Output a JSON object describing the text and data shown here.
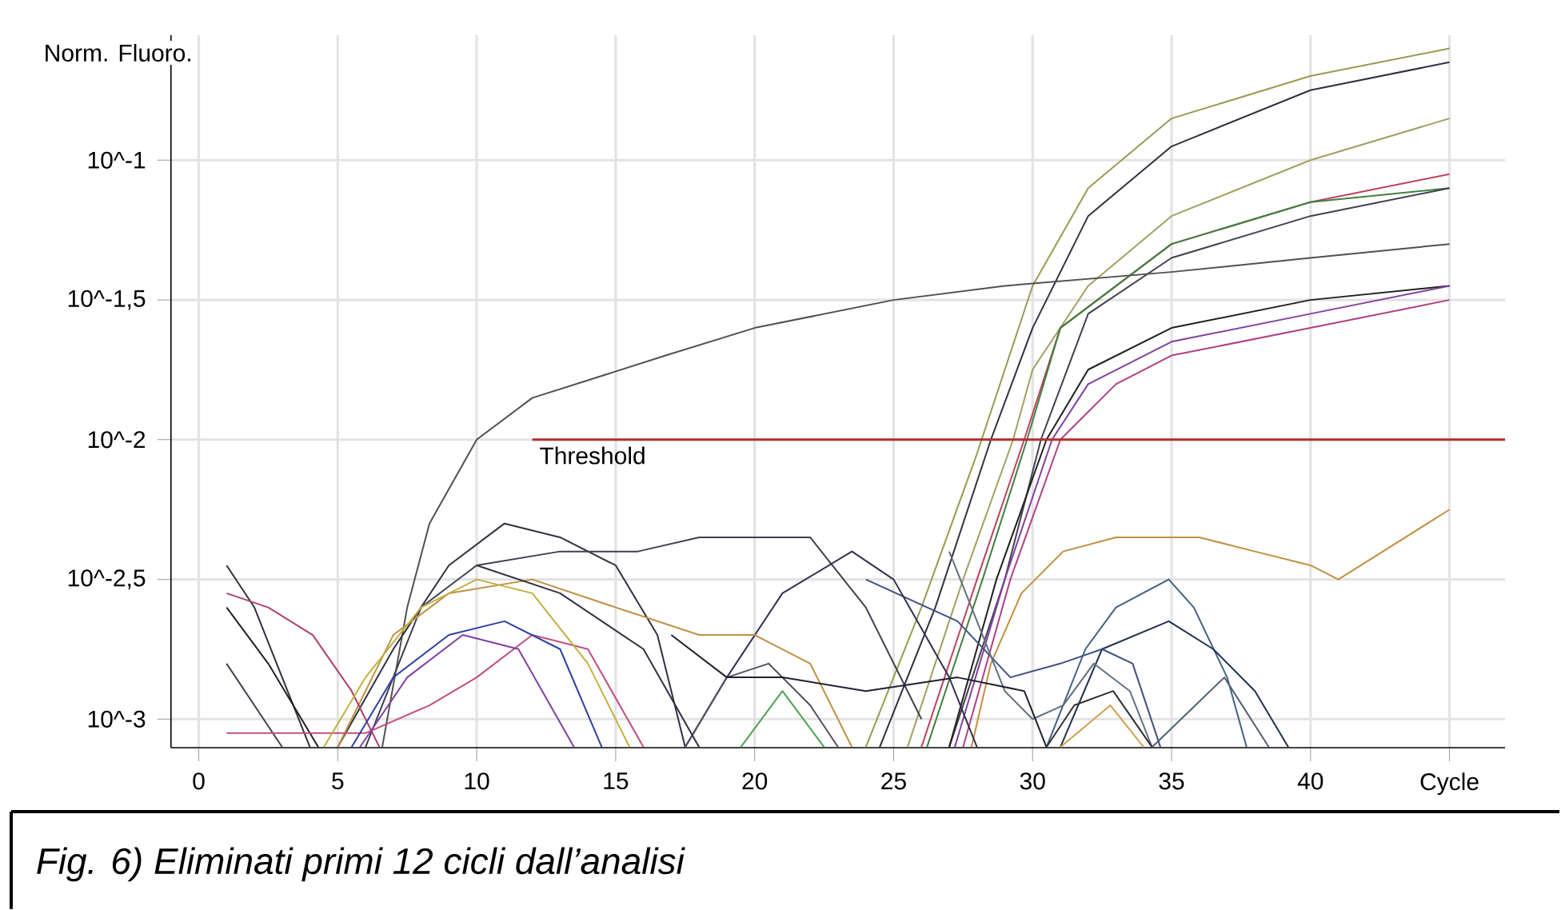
{
  "chart_data": {
    "type": "line",
    "ylabel": "Norm. Fluoro.",
    "annotations": [
      "Fig. 6) Eliminati primi 12 cicli dall’analisi"
    ],
    "xlim": [
      -1,
      47
    ],
    "ylim": [
      0.00079,
      0.28
    ],
    "log": true,
    "grid": true,
    "marker": "none",
    "xticks": [
      0,
      5,
      10,
      15,
      20,
      25,
      30,
      35,
      40,
      {
        "value": 45,
        "label": "Cycle"
      }
    ],
    "yticks": [
      {
        "value": 0.1,
        "label": "10^-1"
      },
      {
        "value": 0.0316,
        "label": "10^-1,5"
      },
      {
        "value": 0.01,
        "label": "10^-2"
      },
      {
        "value": 0.00316,
        "label": "10^-2,5"
      },
      {
        "value": 0.001,
        "label": "10^-3"
      }
    ],
    "series": [
      {
        "color": "#9a9a50",
        "x": [
          24,
          26,
          28,
          30,
          32,
          35,
          40,
          45
        ],
        "values": [
          0.000794,
          0.00251,
          0.00891,
          0.0355,
          0.0794,
          0.141,
          0.2,
          0.251
        ]
      },
      {
        "color": "#303040",
        "x": [
          24.5,
          26.5,
          28.5,
          30,
          32,
          35,
          40,
          45
        ],
        "values": [
          0.000794,
          0.00251,
          0.01,
          0.0251,
          0.0631,
          0.112,
          0.178,
          0.224
        ]
      },
      {
        "color": "#a0a060",
        "x": [
          25.5,
          27.5,
          29.3,
          30,
          32,
          35,
          40,
          45
        ],
        "values": [
          0.000794,
          0.00316,
          0.01,
          0.0178,
          0.0355,
          0.0631,
          0.1,
          0.141
        ]
      },
      {
        "color": "#c04060",
        "x": [
          26,
          28,
          29.7,
          31,
          35,
          40,
          45
        ],
        "values": [
          0.000794,
          0.00316,
          0.01,
          0.0251,
          0.0501,
          0.0708,
          0.0891
        ]
      },
      {
        "color": "#408040",
        "x": [
          26.2,
          28.2,
          29.8,
          31,
          35,
          40,
          45
        ],
        "values": [
          0.000794,
          0.00316,
          0.01,
          0.0251,
          0.0501,
          0.0708,
          0.0794
        ]
      },
      {
        "color": "#404050",
        "x": [
          27,
          29,
          30.3,
          32,
          35,
          40,
          45
        ],
        "values": [
          0.000794,
          0.00316,
          0.01,
          0.0282,
          0.0447,
          0.0631,
          0.0794
        ]
      },
      {
        "color": "#505050",
        "x": [
          6.6,
          7.5,
          8.3,
          10,
          12,
          16.8,
          20,
          25,
          29,
          35,
          40,
          45
        ],
        "values": [
          0.000794,
          0.00251,
          0.00501,
          0.01,
          0.0141,
          0.02,
          0.0251,
          0.0316,
          0.0355,
          0.0398,
          0.0447,
          0.0501
        ]
      },
      {
        "color": "#202020",
        "x": [
          27,
          28.7,
          30.5,
          32,
          35,
          40,
          45
        ],
        "values": [
          0.000794,
          0.00316,
          0.01,
          0.0178,
          0.0251,
          0.0316,
          0.0355
        ]
      },
      {
        "color": "#8040a0",
        "x": [
          27.2,
          29,
          30.7,
          32,
          35,
          40,
          45
        ],
        "values": [
          0.000794,
          0.00316,
          0.01,
          0.0158,
          0.0224,
          0.0282,
          0.0355
        ]
      },
      {
        "color": "#b04080",
        "x": [
          27.5,
          29.2,
          31,
          33,
          35,
          40,
          45
        ],
        "values": [
          0.000794,
          0.00316,
          0.01,
          0.0158,
          0.02,
          0.0251,
          0.0316
        ]
      },
      {
        "color": "#c09040",
        "x": [
          27.8,
          28.5,
          29.6,
          31.1,
          33,
          36,
          38,
          40,
          41,
          45
        ],
        "values": [
          0.000794,
          0.00158,
          0.00282,
          0.00398,
          0.00447,
          0.00447,
          0.00398,
          0.00355,
          0.00316,
          0.00562
        ]
      },
      {
        "color": "#406080",
        "x": [
          30.5,
          31.9,
          33,
          34.9,
          35.8,
          37,
          37.7
        ],
        "values": [
          0.000794,
          0.00178,
          0.00251,
          0.00316,
          0.00251,
          0.00141,
          0.000794
        ]
      },
      {
        "color": "#203050",
        "x": [
          31,
          32.5,
          34.9,
          36.5,
          38,
          39.2
        ],
        "values": [
          0.000794,
          0.00178,
          0.00224,
          0.00178,
          0.00126,
          0.000794
        ]
      },
      {
        "color": "#405080",
        "x": [
          24,
          27.3,
          29.2,
          31,
          32.5,
          33.6,
          34.6
        ],
        "values": [
          0.00316,
          0.00224,
          0.00141,
          0.00158,
          0.00178,
          0.00158,
          0.000794
        ]
      },
      {
        "color": "#607080",
        "x": [
          27,
          29,
          30,
          31.1,
          32.2,
          33.5,
          34.3
        ],
        "values": [
          0.00398,
          0.00126,
          0.001,
          0.00112,
          0.00158,
          0.00126,
          0.000794
        ]
      },
      {
        "color": "#303030",
        "x": [
          30.5,
          31.5,
          32.9,
          34.3
        ],
        "values": [
          0.000794,
          0.00112,
          0.00126,
          0.000794
        ]
      },
      {
        "color": "#506070",
        "x": [
          34.3,
          36.9,
          38.5
        ],
        "values": [
          0.000794,
          0.00141,
          0.000794
        ]
      },
      {
        "color": "#d0a050",
        "x": [
          31,
          32.8,
          34
        ],
        "values": [
          0.000794,
          0.00112,
          0.000794
        ]
      },
      {
        "color": "#303040",
        "x": [
          5,
          7,
          9,
          11,
          13,
          15,
          16.5,
          17.5
        ],
        "values": [
          0.000794,
          0.00178,
          0.00355,
          0.00501,
          0.00447,
          0.00355,
          0.002,
          0.000794
        ]
      },
      {
        "color": "#404050",
        "x": [
          6,
          8,
          10,
          13,
          15.8,
          18,
          20,
          22,
          24,
          26
        ],
        "values": [
          0.000794,
          0.00251,
          0.00355,
          0.00398,
          0.00398,
          0.00447,
          0.00447,
          0.00447,
          0.00251,
          0.001
        ]
      },
      {
        "color": "#303050",
        "x": [
          17.5,
          19,
          21,
          23.5,
          25,
          27,
          28
        ],
        "values": [
          0.000794,
          0.00141,
          0.00282,
          0.00398,
          0.00316,
          0.00141,
          0.000794
        ]
      },
      {
        "color": "#c09040",
        "x": [
          5,
          7,
          9,
          12,
          15,
          18,
          20,
          22,
          23.5
        ],
        "values": [
          0.000794,
          0.002,
          0.00282,
          0.00316,
          0.00251,
          0.002,
          0.002,
          0.00158,
          0.000794
        ]
      },
      {
        "color": "#303040",
        "x": [
          1,
          2,
          3,
          4
        ],
        "values": [
          0.00355,
          0.00251,
          0.00141,
          0.000794
        ]
      },
      {
        "color": "#b04070",
        "x": [
          1,
          2.5,
          4.1,
          5.5,
          6.5
        ],
        "values": [
          0.00282,
          0.00251,
          0.002,
          0.00126,
          0.000794
        ]
      },
      {
        "color": "#202020",
        "x": [
          1,
          2.5,
          4.3
        ],
        "values": [
          0.00251,
          0.00158,
          0.000794
        ]
      },
      {
        "color": "#404050",
        "x": [
          1,
          2,
          3
        ],
        "values": [
          0.00158,
          0.00112,
          0.000794
        ]
      },
      {
        "color": "#c05080",
        "x": [
          1,
          4,
          6,
          8.3,
          10,
          12,
          14,
          16
        ],
        "values": [
          0.000891,
          0.000891,
          0.000891,
          0.00112,
          0.00141,
          0.002,
          0.00178,
          0.000794
        ]
      },
      {
        "color": "#c0b040",
        "x": [
          4.5,
          6,
          8,
          10,
          12,
          14,
          15.5
        ],
        "values": [
          0.000794,
          0.00141,
          0.00251,
          0.00316,
          0.00282,
          0.00158,
          0.000794
        ]
      },
      {
        "color": "#3040a0",
        "x": [
          5.5,
          7,
          9,
          11,
          13,
          14.5
        ],
        "values": [
          0.000794,
          0.00141,
          0.002,
          0.00224,
          0.00178,
          0.000794
        ]
      },
      {
        "color": "#8040a0",
        "x": [
          5.8,
          7.5,
          9.5,
          11.5,
          13.5
        ],
        "values": [
          0.000794,
          0.00141,
          0.002,
          0.00178,
          0.000794
        ]
      },
      {
        "color": "#505060",
        "x": [
          17.5,
          19,
          20.5,
          22,
          23
        ],
        "values": [
          0.000794,
          0.00141,
          0.00158,
          0.00112,
          0.000794
        ]
      },
      {
        "color": "#50a050",
        "x": [
          19.5,
          21,
          22.5
        ],
        "values": [
          0.000794,
          0.00126,
          0.000794
        ]
      },
      {
        "color": "#303040",
        "x": [
          10,
          13,
          16,
          18
        ],
        "values": [
          0.00355,
          0.00282,
          0.00178,
          0.000794
        ]
      },
      {
        "color": "#202030",
        "x": [
          17,
          19,
          21,
          24,
          27.3,
          29.7,
          30.5
        ],
        "values": [
          0.002,
          0.00141,
          0.00141,
          0.00126,
          0.00141,
          0.00126,
          0.000794
        ]
      },
      {
        "name": "Threshold",
        "color": "#b03030",
        "x": [
          12,
          47
        ],
        "values": [
          0.01,
          0.01
        ]
      }
    ]
  }
}
